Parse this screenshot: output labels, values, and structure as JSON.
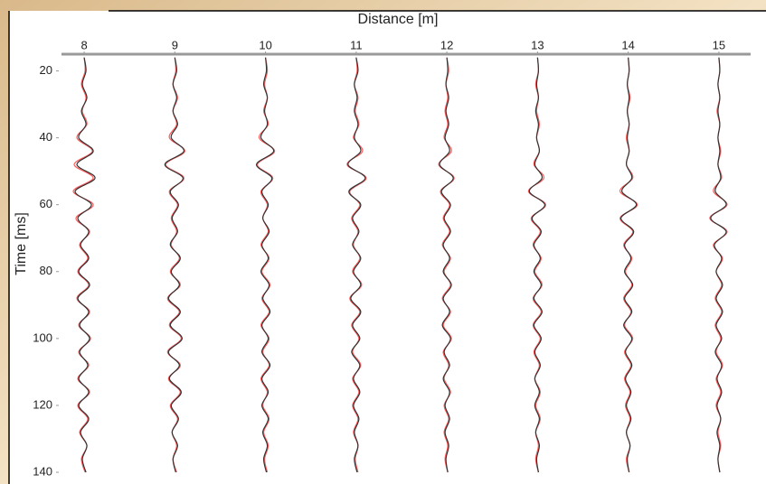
{
  "chart_data": {
    "type": "wiggle",
    "xlabel": "Distance [m]",
    "ylabel": "Time [ms]",
    "xlim": [
      7.75,
      15.35
    ],
    "xticks": [
      8,
      9,
      10,
      11,
      12,
      13,
      14,
      15
    ],
    "ylim": [
      15,
      143.5
    ],
    "yticks": [
      20,
      40,
      60,
      80,
      100,
      120,
      140
    ],
    "y_inverted": true,
    "x_axis_top": true,
    "y": [
      16,
      20,
      24,
      28,
      32,
      36,
      40,
      44,
      48,
      52,
      56,
      60,
      64,
      68,
      72,
      76,
      80,
      84,
      88,
      92,
      96,
      100,
      104,
      108,
      112,
      116,
      120,
      124,
      128,
      132,
      136,
      140
    ],
    "series": [
      {
        "x0": 8,
        "color": "#ff5a5a",
        "values": [
          0,
          0.01,
          -0.03,
          0.02,
          -0.02,
          0.03,
          -0.08,
          0.09,
          -0.11,
          0.1,
          -0.12,
          0.1,
          -0.09,
          0.06,
          -0.05,
          0.04,
          -0.07,
          0.05,
          -0.08,
          0.06,
          -0.06,
          0.07,
          -0.06,
          0.05,
          -0.07,
          0.06,
          -0.07,
          0.04,
          -0.05,
          0.03,
          -0.03,
          0.01
        ]
      },
      {
        "x0": 8,
        "color": "#333333",
        "values": [
          0,
          0.02,
          -0.02,
          0.03,
          -0.03,
          0.02,
          -0.06,
          0.1,
          -0.08,
          0.12,
          -0.1,
          0.08,
          -0.07,
          0.05,
          -0.04,
          0.05,
          -0.06,
          0.06,
          -0.07,
          0.05,
          -0.05,
          0.06,
          -0.05,
          0.04,
          -0.06,
          0.05,
          -0.06,
          0.05,
          -0.04,
          0.03,
          -0.02,
          0.02
        ]
      },
      {
        "x0": 9,
        "color": "#ff5a5a",
        "values": [
          0,
          0.01,
          -0.02,
          0.03,
          -0.02,
          0.02,
          -0.06,
          0.11,
          -0.1,
          0.1,
          -0.06,
          0.03,
          -0.04,
          0.02,
          -0.04,
          0.05,
          -0.05,
          0.06,
          -0.08,
          0.05,
          -0.06,
          0.07,
          -0.08,
          0.06,
          -0.07,
          0.06,
          -0.05,
          0.03,
          -0.03,
          0.02,
          -0.02,
          0.02
        ]
      },
      {
        "x0": 9,
        "color": "#333333",
        "values": [
          0,
          0.02,
          -0.02,
          0.02,
          -0.02,
          0.03,
          -0.04,
          0.1,
          -0.11,
          0.09,
          -0.05,
          0.04,
          -0.03,
          0.03,
          -0.05,
          0.06,
          -0.04,
          0.05,
          -0.07,
          0.06,
          -0.05,
          0.08,
          -0.07,
          0.05,
          -0.06,
          0.07,
          -0.04,
          0.04,
          -0.03,
          0.03,
          -0.02,
          0.01
        ]
      },
      {
        "x0": 10,
        "color": "#ff5a5a",
        "values": [
          0,
          0.02,
          -0.01,
          0.02,
          -0.02,
          0.03,
          -0.07,
          0.1,
          -0.09,
          0.08,
          -0.05,
          0.02,
          -0.03,
          0.03,
          -0.05,
          0.04,
          -0.04,
          0.05,
          -0.04,
          0.04,
          -0.05,
          0.04,
          -0.03,
          0.04,
          -0.05,
          0.02,
          -0.03,
          0.04,
          -0.02,
          0.03,
          -0.01,
          0.02
        ]
      },
      {
        "x0": 10,
        "color": "#333333",
        "values": [
          0,
          0.01,
          -0.02,
          0.02,
          -0.01,
          0.02,
          -0.05,
          0.09,
          -0.1,
          0.07,
          -0.04,
          0.03,
          -0.03,
          0.04,
          -0.04,
          0.03,
          -0.05,
          0.04,
          -0.03,
          0.05,
          -0.04,
          0.03,
          -0.04,
          0.05,
          -0.04,
          0.03,
          -0.04,
          0.03,
          -0.03,
          0.02,
          -0.02,
          0.01
        ]
      },
      {
        "x0": 11,
        "color": "#ff5a5a",
        "values": [
          0,
          0.01,
          -0.02,
          0.02,
          -0.01,
          0.03,
          -0.03,
          0.07,
          -0.1,
          0.11,
          -0.07,
          0.04,
          -0.05,
          0.02,
          -0.03,
          0.04,
          -0.04,
          0.06,
          -0.07,
          0.04,
          -0.05,
          0.03,
          -0.04,
          0.05,
          -0.04,
          0.03,
          -0.04,
          0.02,
          -0.03,
          0.02,
          -0.01,
          0.02
        ]
      },
      {
        "x0": 11,
        "color": "#333333",
        "values": [
          0,
          0.02,
          -0.02,
          0.01,
          -0.02,
          0.02,
          -0.02,
          0.05,
          -0.09,
          0.1,
          -0.08,
          0.05,
          -0.04,
          0.03,
          -0.04,
          0.05,
          -0.03,
          0.05,
          -0.06,
          0.05,
          -0.04,
          0.04,
          -0.05,
          0.04,
          -0.03,
          0.04,
          -0.03,
          0.03,
          -0.02,
          0.02,
          -0.02,
          0.01
        ]
      },
      {
        "x0": 12,
        "color": "#ff5a5a",
        "values": [
          0,
          0.02,
          -0.01,
          0.01,
          -0.02,
          0.01,
          -0.03,
          0.05,
          -0.09,
          0.08,
          -0.07,
          0.03,
          -0.04,
          0.03,
          -0.05,
          0.04,
          -0.03,
          0.04,
          -0.05,
          0.04,
          -0.04,
          0.05,
          -0.04,
          0.02,
          -0.03,
          0.04,
          -0.03,
          0.02,
          -0.03,
          0.01,
          -0.02,
          0.01
        ]
      },
      {
        "x0": 12,
        "color": "#333333",
        "values": [
          0,
          0.01,
          -0.01,
          0.02,
          -0.01,
          0.02,
          -0.02,
          0.03,
          -0.08,
          0.07,
          -0.06,
          0.04,
          -0.03,
          0.04,
          -0.04,
          0.03,
          -0.04,
          0.05,
          -0.04,
          0.03,
          -0.05,
          0.04,
          -0.03,
          0.03,
          -0.04,
          0.03,
          -0.02,
          0.03,
          -0.02,
          0.02,
          -0.01,
          0.01
        ]
      },
      {
        "x0": 13,
        "color": "#ff5a5a",
        "values": [
          0,
          0.01,
          -0.02,
          0.01,
          -0.01,
          0.02,
          -0.01,
          0.02,
          -0.04,
          0.07,
          -0.1,
          0.09,
          -0.07,
          0.03,
          -0.05,
          0.04,
          -0.03,
          0.05,
          -0.05,
          0.04,
          -0.05,
          0.03,
          -0.04,
          0.02,
          -0.03,
          0.03,
          -0.02,
          0.03,
          -0.02,
          0.01,
          -0.02,
          0.01
        ]
      },
      {
        "x0": 13,
        "color": "#333333",
        "values": [
          0,
          0.01,
          -0.01,
          0.01,
          -0.02,
          0.01,
          -0.01,
          0.02,
          -0.03,
          0.05,
          -0.09,
          0.08,
          -0.06,
          0.04,
          -0.04,
          0.03,
          -0.04,
          0.04,
          -0.04,
          0.05,
          -0.04,
          0.04,
          -0.03,
          0.03,
          -0.03,
          0.02,
          -0.03,
          0.02,
          -0.02,
          0.02,
          -0.01,
          0.01
        ]
      },
      {
        "x0": 14,
        "color": "#ff5a5a",
        "values": [
          0,
          0.01,
          -0.01,
          0.02,
          -0.01,
          0.01,
          -0.02,
          0.01,
          -0.02,
          0.05,
          -0.09,
          0.1,
          -0.09,
          0.05,
          -0.05,
          0.04,
          -0.03,
          0.04,
          -0.05,
          0.03,
          -0.04,
          0.05,
          -0.04,
          0.03,
          -0.04,
          0.02,
          -0.03,
          0.02,
          -0.02,
          0.02,
          -0.02,
          0.01
        ]
      },
      {
        "x0": 14,
        "color": "#333333",
        "values": [
          0,
          0.01,
          -0.01,
          0.01,
          -0.01,
          0.01,
          -0.01,
          0.01,
          -0.02,
          0.04,
          -0.07,
          0.09,
          -0.08,
          0.06,
          -0.04,
          0.03,
          -0.04,
          0.05,
          -0.04,
          0.04,
          -0.05,
          0.04,
          -0.03,
          0.04,
          -0.03,
          0.03,
          -0.02,
          0.03,
          -0.02,
          0.02,
          -0.01,
          0.01
        ]
      },
      {
        "x0": 15,
        "color": "#ff5a5a",
        "values": [
          0,
          0.01,
          -0.01,
          0.01,
          -0.02,
          0.01,
          -0.01,
          0.02,
          -0.01,
          0.03,
          -0.06,
          0.09,
          -0.1,
          0.09,
          -0.06,
          0.04,
          -0.03,
          0.03,
          -0.04,
          0.03,
          -0.04,
          0.02,
          -0.03,
          0.04,
          -0.03,
          0.02,
          -0.03,
          0.02,
          -0.01,
          0.02,
          -0.01,
          0.01
        ]
      },
      {
        "x0": 15,
        "color": "#333333",
        "values": [
          0,
          0.01,
          -0.01,
          0.01,
          -0.01,
          0.01,
          -0.01,
          0.01,
          -0.01,
          0.02,
          -0.04,
          0.08,
          -0.09,
          0.08,
          -0.05,
          0.03,
          -0.03,
          0.04,
          -0.03,
          0.04,
          -0.03,
          0.03,
          -0.04,
          0.03,
          -0.02,
          0.03,
          -0.02,
          0.02,
          -0.02,
          0.01,
          -0.01,
          0.01
        ]
      }
    ]
  }
}
